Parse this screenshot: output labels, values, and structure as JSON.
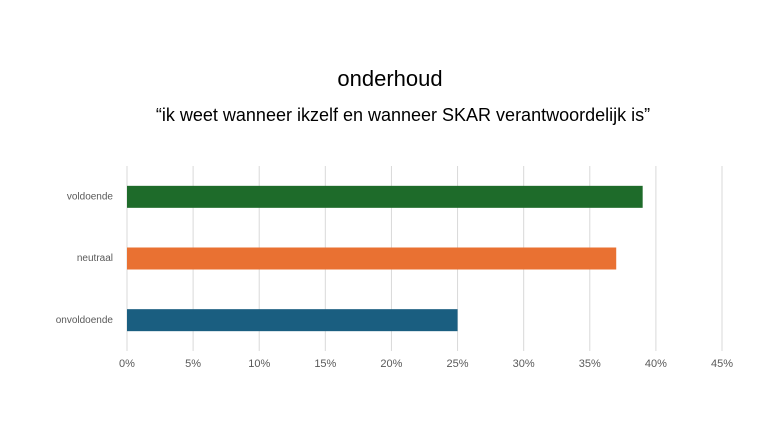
{
  "chart_data": {
    "type": "bar",
    "orientation": "horizontal",
    "title": "onderhoud",
    "subtitle": "“ik weet wanneer ikzelf en wanneer SKAR verantwoordelijk is”",
    "categories": [
      "voldoende",
      "neutraal",
      "onvoldoende"
    ],
    "values": [
      39,
      37,
      25
    ],
    "colors": [
      "#1e6b2a",
      "#e97132",
      "#1a5e80"
    ],
    "xlim": [
      0,
      45
    ],
    "xticks": [
      {
        "value": 0,
        "label": "0%"
      },
      {
        "value": 5,
        "label": "5%"
      },
      {
        "value": 10,
        "label": "10%"
      },
      {
        "value": 15,
        "label": "15%"
      },
      {
        "value": 20,
        "label": "20%"
      },
      {
        "value": 25,
        "label": "25%"
      },
      {
        "value": 30,
        "label": "30%"
      },
      {
        "value": 35,
        "label": "35%"
      },
      {
        "value": 40,
        "label": "40%"
      },
      {
        "value": 45,
        "label": "45%"
      }
    ],
    "grid": true
  }
}
